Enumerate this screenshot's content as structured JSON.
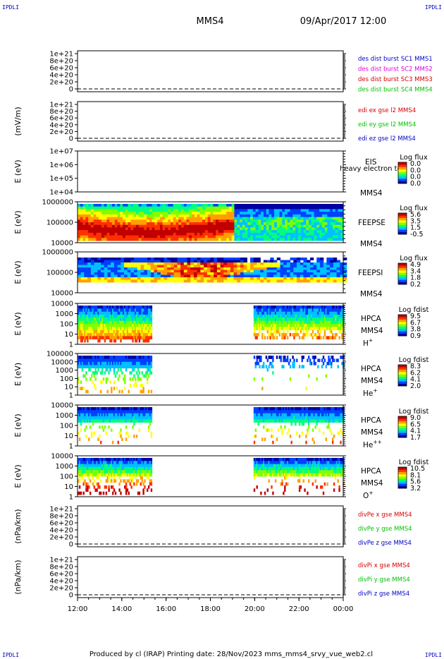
{
  "corner_tags": {
    "top_left": "IPDLI",
    "top_right": "IPDLI",
    "bottom_left": "IPDLI",
    "bottom_right": "IPDLI"
  },
  "header": {
    "spacecraft": "MMS4",
    "datetime": "09/Apr/2017 12:00"
  },
  "footer": {
    "text": "Produced by cl (IRAP)   Printing date: 28/Nov/2023   mms_mms4_srvy_vue_web2.cl"
  },
  "colors": {
    "red": "#d40000",
    "magenta": "#e000e0",
    "green": "#00c000",
    "blue": "#0000c0",
    "colorbar": [
      "#0000a0",
      "#0040ff",
      "#00c0ff",
      "#00ff80",
      "#80ff00",
      "#ffff00",
      "#ffa000",
      "#ff3000",
      "#c00000"
    ]
  },
  "chart_data": {
    "type": "heatmap",
    "x_axis": {
      "ticks": [
        "12:00",
        "14:00",
        "16:00",
        "18:00",
        "20:00",
        "22:00",
        "00:00"
      ],
      "range_hours": [
        12,
        24
      ]
    },
    "panels": [
      {
        "id": "dist",
        "type": "line",
        "ylabel": "",
        "yticks": [
          "1e+21",
          "8e+20",
          "6e+20",
          "4e+20",
          "2e+20",
          "0"
        ],
        "legend": [
          {
            "text": "des dist burst SC1 MMS1",
            "color": "#0000c0"
          },
          {
            "text": "des dist burst SC2 MMS2",
            "color": "#e000e0"
          },
          {
            "text": "des dist burst SC3 MMS3",
            "color": "#d40000"
          },
          {
            "text": "des dist burst SC4 MMS4",
            "color": "#00c000"
          }
        ]
      },
      {
        "id": "edi",
        "type": "line",
        "ylabel": "(mV/m)",
        "yticks": [
          "1e+21",
          "8e+20",
          "6e+20",
          "4e+20",
          "2e+20",
          "0"
        ],
        "legend": [
          {
            "text": "edi ex gse l2 MMS4",
            "color": "#d40000"
          },
          {
            "text": "edi ey gse l2 MMS4",
            "color": "#00c000"
          },
          {
            "text": "edi ez gse l2 MMS4",
            "color": "#0000c0"
          }
        ]
      },
      {
        "id": "eis",
        "type": "heatmap",
        "ylabel": "E (eV)",
        "yticks": [
          "1e+07",
          "1e+06",
          "1e+05",
          "1e+04"
        ],
        "instrument": "EIS",
        "overlay_text": "heavy electron tof",
        "spacecraft": "MMS4",
        "colorbar_title": "Log flux",
        "colorbar_ticks": [
          "0.0",
          "0.0",
          "0.0",
          "0.0"
        ]
      },
      {
        "id": "feepse",
        "type": "heatmap",
        "ylabel": "E (eV)",
        "yticks": [
          "1000000",
          "100000",
          "10000"
        ],
        "instrument": "FEEPSE",
        "spacecraft": "MMS4",
        "colorbar_title": "Log flux",
        "colorbar_ticks": [
          "5.6",
          "3.5",
          "1.5",
          "-0.5"
        ]
      },
      {
        "id": "feepsi",
        "type": "heatmap",
        "ylabel": "E (eV)",
        "yticks": [
          "1000000",
          "100000",
          "10000"
        ],
        "instrument": "FEEPSI",
        "spacecraft": "MMS4",
        "colorbar_title": "Log flux",
        "colorbar_ticks": [
          "4.9",
          "3.4",
          "1.8",
          "0.2"
        ]
      },
      {
        "id": "hpca_h",
        "type": "heatmap",
        "ylabel": "E (eV)",
        "yticks": [
          "10000",
          "1000",
          "100",
          "10",
          "1"
        ],
        "instrument": "HPCA",
        "spacecraft": "MMS4",
        "species": "H",
        "charge": "+",
        "colorbar_title": "Log fdist",
        "colorbar_ticks": [
          "9.5",
          "6.7",
          "3.8",
          "0.9"
        ]
      },
      {
        "id": "hpca_he",
        "type": "heatmap",
        "ylabel": "E (eV)",
        "yticks": [
          "100000",
          "10000",
          "1000",
          "100",
          "10",
          "1"
        ],
        "instrument": "HPCA",
        "spacecraft": "MMS4",
        "species": "He",
        "charge": "+",
        "colorbar_title": "Log fdist",
        "colorbar_ticks": [
          "8.3",
          "6.2",
          "4.1",
          "2.0"
        ]
      },
      {
        "id": "hpca_hepp",
        "type": "heatmap",
        "ylabel": "E (eV)",
        "yticks": [
          "10000",
          "1000",
          "100",
          "10",
          "1"
        ],
        "instrument": "HPCA",
        "spacecraft": "MMS4",
        "species": "He",
        "charge": "++",
        "colorbar_title": "Log fdist",
        "colorbar_ticks": [
          "9.0",
          "6.5",
          "4.1",
          "1.7"
        ]
      },
      {
        "id": "hpca_o",
        "type": "heatmap",
        "ylabel": "E (eV)",
        "yticks": [
          "10000",
          "1000",
          "100",
          "10",
          "1"
        ],
        "instrument": "HPCA",
        "spacecraft": "MMS4",
        "species": "O",
        "charge": "+",
        "colorbar_title": "Log fdist",
        "colorbar_ticks": [
          "10.5",
          "8.1",
          "5.6",
          "3.2"
        ]
      },
      {
        "id": "divpe",
        "type": "line",
        "ylabel": "(nPa/km)",
        "yticks": [
          "1e+21",
          "8e+20",
          "6e+20",
          "4e+20",
          "2e+20",
          "0"
        ],
        "legend": [
          {
            "text": "divPe x gse MMS4",
            "color": "#d40000"
          },
          {
            "text": "divPe y gse MMS4",
            "color": "#00c000"
          },
          {
            "text": "divPe z gse MMS4",
            "color": "#0000c0"
          }
        ]
      },
      {
        "id": "divpi",
        "type": "line",
        "ylabel": "(nPa/km)",
        "yticks": [
          "1e+21",
          "8e+20",
          "6e+20",
          "4e+20",
          "2e+20",
          "0"
        ],
        "legend": [
          {
            "text": "divPi x gse MMS4",
            "color": "#d40000"
          },
          {
            "text": "divPi y gse MMS4",
            "color": "#00c000"
          },
          {
            "text": "divPi z gse MMS4",
            "color": "#0000c0"
          }
        ]
      }
    ],
    "data_coverage": {
      "hpca_intervals_hours": [
        [
          12.0,
          15.35
        ],
        [
          19.95,
          24.0
        ]
      ],
      "feepse_hot_interval_hours": [
        12.0,
        19.0
      ],
      "feepsi_band_hours": [
        12.0,
        24.0
      ]
    }
  }
}
